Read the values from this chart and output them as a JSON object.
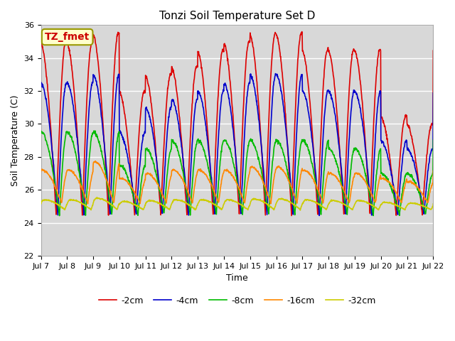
{
  "title": "Tonzi Soil Temperature Set D",
  "ylabel": "Soil Temperature (C)",
  "xlabel": "Time",
  "ylim": [
    22,
    36
  ],
  "annotation": "TZ_fmet",
  "legend": [
    "-2cm",
    "-4cm",
    "-8cm",
    "-16cm",
    "-32cm"
  ],
  "colors": [
    "#dd0000",
    "#0000cc",
    "#00bb00",
    "#ff8800",
    "#cccc00"
  ],
  "linewidths": [
    1.2,
    1.2,
    1.2,
    1.2,
    1.2
  ],
  "xtick_labels": [
    "Jul 7",
    "Jul 8",
    "Jul 9",
    "Jul 10",
    "Jul 11",
    "Jul 12",
    "Jul 13",
    "Jul 14",
    "Jul 15",
    "Jul 16",
    "Jul 17",
    "Jul 18",
    "Jul 19",
    "Jul 20",
    "Jul 21",
    "Jul 22"
  ],
  "ytick_labels": [
    "22",
    "24",
    "26",
    "28",
    "30",
    "32",
    "34",
    "36"
  ],
  "yticks": [
    22,
    24,
    26,
    28,
    30,
    32,
    34,
    36
  ],
  "plot_bg_color": "#d8d8d8",
  "grid_color": "#ffffff",
  "background_color": "#ffffff",
  "annotation_fg": "#cc0000",
  "annotation_bg": "#ffffcc",
  "annotation_edge": "#999900"
}
